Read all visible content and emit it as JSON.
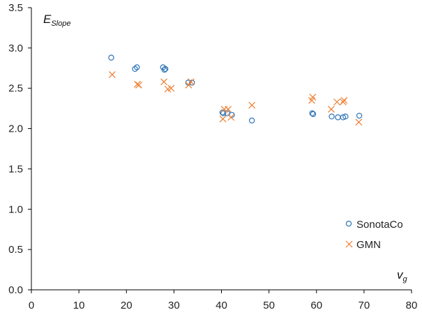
{
  "chart_data": {
    "type": "scatter",
    "xlabel": {
      "main": "v",
      "sub": "g"
    },
    "ylabel": {
      "main": "E",
      "sub": "Slope"
    },
    "xlim": [
      0,
      80
    ],
    "ylim": [
      0,
      3.5
    ],
    "xticks": [
      0,
      10,
      20,
      30,
      40,
      50,
      60,
      70,
      80
    ],
    "yticks": [
      "0.0",
      "0.5",
      "1.0",
      "1.5",
      "2.0",
      "2.5",
      "3.0",
      "3.5"
    ],
    "grid": false,
    "legend": "bottom-right",
    "series": [
      {
        "name": "SonotaCo",
        "marker": "circle",
        "color": "#2e75b6",
        "points": [
          [
            16.8,
            2.88
          ],
          [
            21.8,
            2.74
          ],
          [
            22.2,
            2.76
          ],
          [
            27.7,
            2.76
          ],
          [
            28.0,
            2.73
          ],
          [
            28.2,
            2.74
          ],
          [
            33.0,
            2.57
          ],
          [
            33.8,
            2.57
          ],
          [
            40.2,
            2.2
          ],
          [
            40.4,
            2.19
          ],
          [
            41.2,
            2.19
          ],
          [
            42.2,
            2.17
          ],
          [
            46.4,
            2.1
          ],
          [
            59.1,
            2.19
          ],
          [
            59.3,
            2.18
          ],
          [
            63.2,
            2.15
          ],
          [
            64.5,
            2.14
          ],
          [
            65.6,
            2.14
          ],
          [
            66.1,
            2.15
          ],
          [
            69.0,
            2.16
          ]
        ]
      },
      {
        "name": "GMN",
        "marker": "cross",
        "color": "#ed7d31",
        "points": [
          [
            17.0,
            2.67
          ],
          [
            22.3,
            2.55
          ],
          [
            22.6,
            2.54
          ],
          [
            27.9,
            2.58
          ],
          [
            28.7,
            2.49
          ],
          [
            29.4,
            2.5
          ],
          [
            33.1,
            2.54
          ],
          [
            33.6,
            2.58
          ],
          [
            40.3,
            2.12
          ],
          [
            40.6,
            2.24
          ],
          [
            41.4,
            2.24
          ],
          [
            42.0,
            2.14
          ],
          [
            46.4,
            2.29
          ],
          [
            59.0,
            2.35
          ],
          [
            59.2,
            2.39
          ],
          [
            63.1,
            2.24
          ],
          [
            64.3,
            2.33
          ],
          [
            65.6,
            2.33
          ],
          [
            65.8,
            2.35
          ],
          [
            68.9,
            2.08
          ]
        ]
      }
    ]
  }
}
